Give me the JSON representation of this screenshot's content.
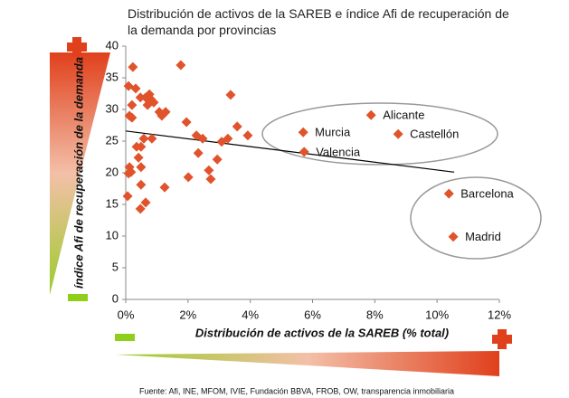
{
  "chart_data": {
    "type": "scatter",
    "title": "Distribución de activos de la SAREB e índice Afi de recuperación de la demanda por provincias",
    "x_label": "Distribución  de activos de la SAREB (% total)",
    "y_label": "índice Afi de recuperación de la demanda",
    "source": "Fuente: Afi, INE, MFOM, IVIE, Fundación BBVA, FROB, OW, transparencia inmobiliaria",
    "color": "#e0532b",
    "x": [
      0.23,
      0.09,
      0.32,
      0.47,
      0.64,
      0.76,
      0.81,
      0.9,
      0.7,
      0.2,
      0.12,
      0.2,
      1.08,
      1.16,
      1.28,
      1.77,
      1.95,
      0.58,
      0.84,
      0.35,
      0.49,
      0.41,
      0.49,
      0.12,
      0.17,
      0.09,
      0.49,
      0.06,
      0.64,
      0.47,
      1.25,
      2.01,
      2.27,
      2.47,
      2.33,
      2.67,
      2.73,
      2.94,
      3.08,
      3.28,
      3.37,
      3.58,
      3.92,
      5.7,
      5.73,
      7.88,
      8.75,
      10.38,
      10.52
    ],
    "values": [
      36.7,
      33.7,
      33.3,
      31.9,
      31.9,
      32.4,
      31.6,
      31.1,
      30.7,
      30.7,
      29.0,
      28.7,
      29.6,
      29.0,
      29.6,
      37.0,
      28.0,
      25.4,
      25.4,
      24.1,
      24.1,
      22.4,
      20.9,
      20.9,
      20.1,
      19.9,
      18.1,
      16.3,
      15.3,
      14.3,
      17.7,
      19.3,
      25.9,
      25.4,
      23.1,
      20.4,
      19.0,
      22.1,
      24.9,
      25.4,
      32.3,
      27.3,
      25.9,
      26.4,
      23.3,
      29.1,
      26.1,
      16.7,
      9.9
    ],
    "point_labels": [
      null,
      null,
      null,
      null,
      null,
      null,
      null,
      null,
      null,
      null,
      null,
      null,
      null,
      null,
      null,
      null,
      null,
      null,
      null,
      null,
      null,
      null,
      null,
      null,
      null,
      null,
      null,
      null,
      null,
      null,
      null,
      null,
      null,
      null,
      null,
      null,
      null,
      null,
      null,
      null,
      null,
      null,
      null,
      "Murcia",
      "Valencia",
      "Alicante",
      "Castellón",
      "Barcelona",
      "Madrid"
    ],
    "trendline": {
      "x": [
        0,
        10.55
      ],
      "values": [
        26.6,
        20.1
      ]
    },
    "xlim": [
      0,
      12
    ],
    "xticks": [
      {
        "value": 0,
        "label": "0%"
      },
      {
        "value": 2,
        "label": "2%"
      },
      {
        "value": 4,
        "label": "4%"
      },
      {
        "value": 6,
        "label": "6%"
      },
      {
        "value": 8,
        "label": "8%"
      },
      {
        "value": 10,
        "label": "10%"
      },
      {
        "value": 12,
        "label": "12%"
      }
    ],
    "ylim": [
      0,
      40
    ],
    "yticks": [
      0,
      5,
      10,
      15,
      20,
      25,
      30,
      35,
      40
    ]
  }
}
